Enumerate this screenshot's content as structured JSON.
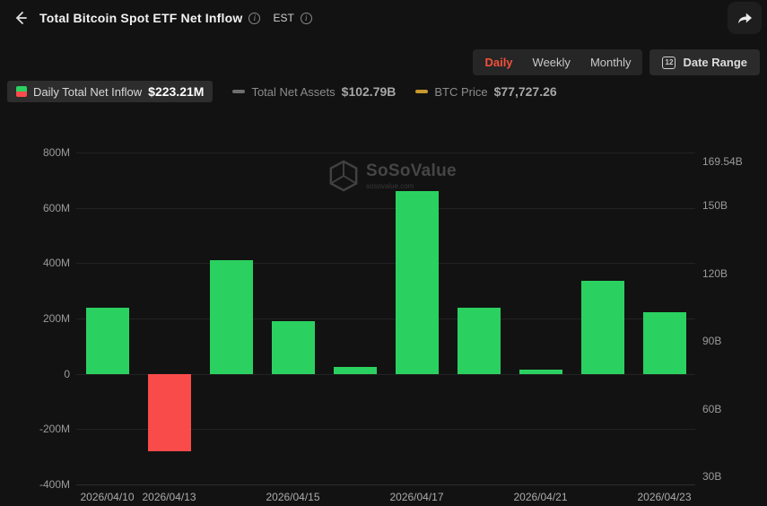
{
  "header": {
    "title": "Total Bitcoin Spot ETF Net Inflow",
    "timezone": "EST"
  },
  "controls": {
    "tabs": [
      {
        "label": "Daily",
        "active": true
      },
      {
        "label": "Weekly",
        "active": false
      },
      {
        "label": "Monthly",
        "active": false
      }
    ],
    "date_range_label": "Date Range",
    "calendar_day": "12"
  },
  "legend": [
    {
      "label": "Daily Total Net Inflow",
      "value": "$223.21M"
    },
    {
      "label": "Total Net Assets",
      "value": "$102.79B"
    },
    {
      "label": "BTC Price",
      "value": "$77,727.26"
    }
  ],
  "watermark": {
    "name": "SoSoValue",
    "domain": "sosovalue.com"
  },
  "colors": {
    "accent_red": "#F4503A",
    "positive_green": "#2BD160",
    "negative_red": "#FA4B4B",
    "assets_gray": "#6F6F6F",
    "btc_gold": "#C9992E"
  },
  "chart_data": {
    "type": "bar",
    "title": "Total Bitcoin Spot ETF Net Inflow",
    "unit": "USD millions",
    "x_labels": [
      "2026/04/10",
      "2026/04/13",
      "",
      "2026/04/15",
      "",
      "2026/04/17",
      "",
      "2026/04/21",
      "",
      "2026/04/23"
    ],
    "values": [
      240,
      -280,
      410,
      190,
      25,
      660,
      240,
      15,
      335,
      223.21
    ],
    "colors": {
      "positive": "#2BD160",
      "negative": "#FA4B4B"
    },
    "left_axis": {
      "range": [
        -400,
        800
      ],
      "ticks": [
        {
          "label": "800M",
          "value": 800
        },
        {
          "label": "600M",
          "value": 600
        },
        {
          "label": "400M",
          "value": 400
        },
        {
          "label": "200M",
          "value": 200
        },
        {
          "label": "0",
          "value": 0
        },
        {
          "label": "-200M",
          "value": -200
        },
        {
          "label": "-400M",
          "value": -400
        }
      ]
    },
    "right_axis": {
      "range": [
        26.5,
        173.5
      ],
      "ticks": [
        {
          "label": "169.54B",
          "value": 169.54
        },
        {
          "label": "150B",
          "value": 150
        },
        {
          "label": "120B",
          "value": 120
        },
        {
          "label": "90B",
          "value": 90
        },
        {
          "label": "60B",
          "value": 60
        },
        {
          "label": "30B",
          "value": 30
        }
      ]
    },
    "grid": true,
    "legend_position": "top-left"
  }
}
